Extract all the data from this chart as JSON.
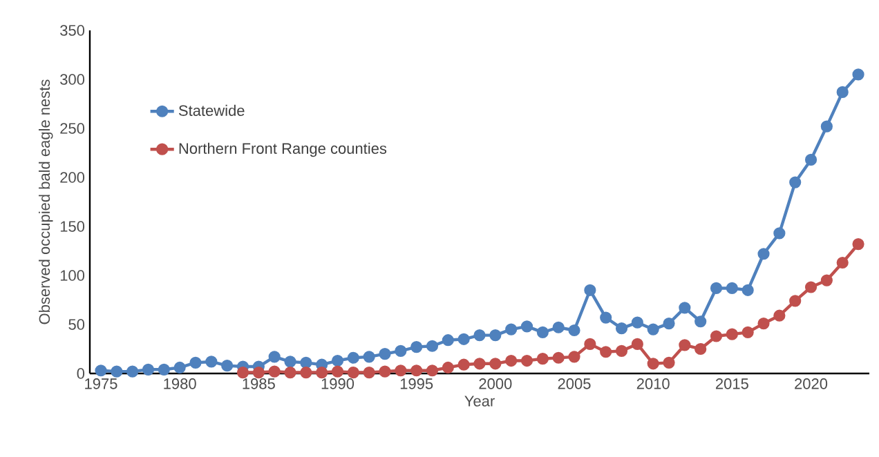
{
  "chart_data": {
    "type": "line",
    "xlabel": "Year",
    "ylabel": "Observed occupied bald eagle nests",
    "xlim": [
      1974.3,
      2023.7
    ],
    "ylim": [
      0,
      350
    ],
    "xticks": [
      1975,
      1980,
      1985,
      1990,
      1995,
      2000,
      2005,
      2010,
      2015,
      2020
    ],
    "yticks": [
      0,
      50,
      100,
      150,
      200,
      250,
      300,
      350
    ],
    "grid": false,
    "legend": "top left",
    "marker": "circle",
    "line_style": "solid",
    "series": [
      {
        "name": "Statewide",
        "color": "#4f81bd",
        "x": [
          1975,
          1976,
          1977,
          1978,
          1979,
          1980,
          1981,
          1982,
          1983,
          1984,
          1985,
          1986,
          1987,
          1988,
          1989,
          1990,
          1991,
          1992,
          1993,
          1994,
          1995,
          1996,
          1997,
          1998,
          1999,
          2000,
          2001,
          2002,
          2003,
          2004,
          2005,
          2006,
          2007,
          2008,
          2009,
          2010,
          2011,
          2012,
          2013,
          2014,
          2015,
          2016,
          2017,
          2018,
          2019,
          2020,
          2021,
          2022,
          2023
        ],
        "values": [
          3,
          2,
          2,
          4,
          4,
          6,
          11,
          12,
          8,
          7,
          7,
          17,
          12,
          11,
          9,
          13,
          16,
          17,
          20,
          23,
          27,
          28,
          34,
          35,
          39,
          39,
          45,
          48,
          42,
          47,
          44,
          85,
          57,
          46,
          52,
          45,
          51,
          67,
          53,
          87,
          87,
          85,
          122,
          143,
          195,
          218,
          252,
          287,
          305
        ]
      },
      {
        "name": "Northern Front Range counties",
        "color": "#c0504d",
        "x": [
          1984,
          1985,
          1986,
          1987,
          1988,
          1989,
          1990,
          1991,
          1992,
          1993,
          1994,
          1995,
          1996,
          1997,
          1998,
          1999,
          2000,
          2001,
          2002,
          2003,
          2004,
          2005,
          2006,
          2007,
          2008,
          2009,
          2010,
          2011,
          2012,
          2013,
          2014,
          2015,
          2016,
          2017,
          2018,
          2019,
          2020,
          2021,
          2022,
          2023
        ],
        "values": [
          1,
          1,
          2,
          1,
          1,
          1,
          2,
          1,
          1,
          2,
          3,
          3,
          3,
          6,
          9,
          10,
          10,
          13,
          13,
          15,
          16,
          17,
          30,
          22,
          23,
          30,
          10,
          11,
          29,
          25,
          38,
          40,
          42,
          51,
          59,
          74,
          88,
          95,
          113,
          132
        ]
      }
    ]
  }
}
